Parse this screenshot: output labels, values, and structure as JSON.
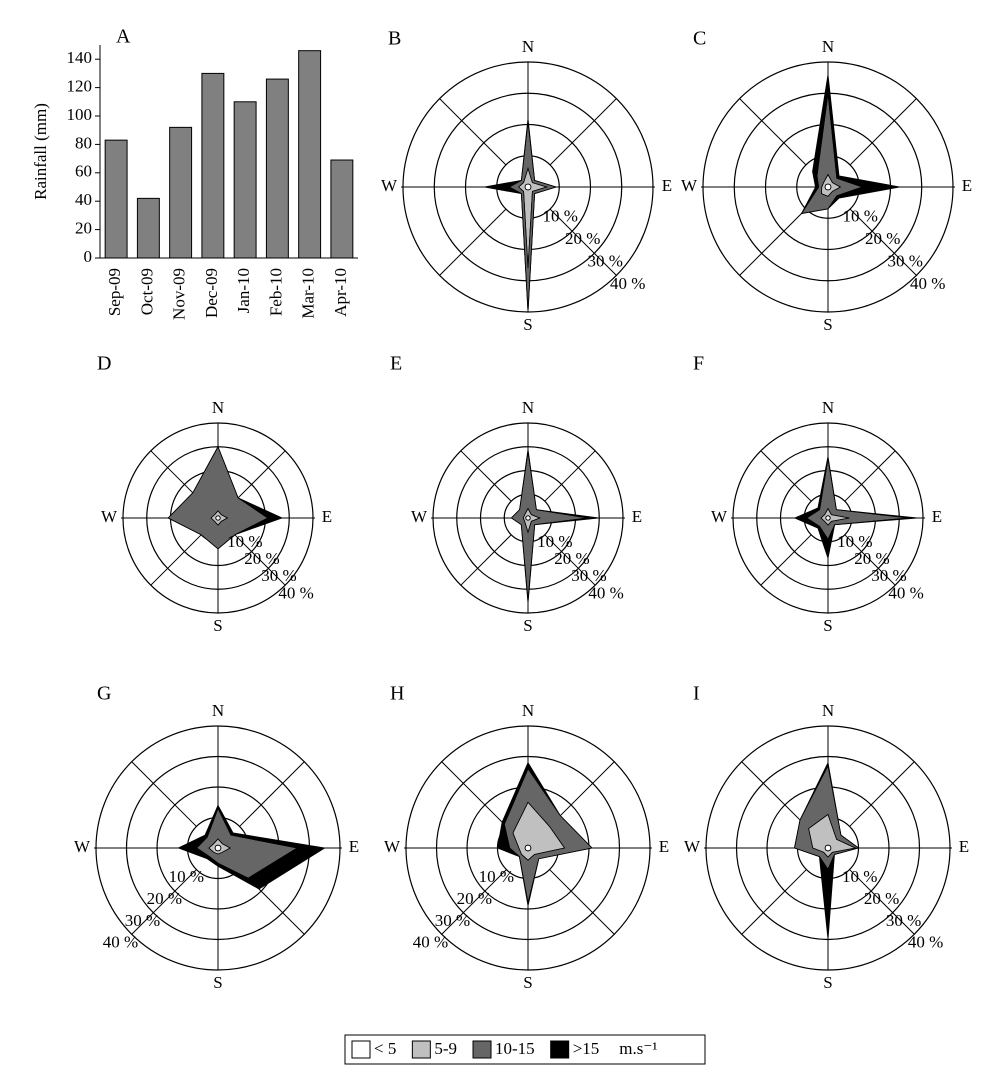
{
  "chart_data": [
    {
      "type": "bar",
      "panel": "A",
      "ylabel": "Rainfall (mm)",
      "categories": [
        "Sep-09",
        "Oct-09",
        "Nov-09",
        "Dec-09",
        "Jan-10",
        "Feb-10",
        "Mar-10",
        "Apr-10"
      ],
      "values": [
        83,
        42,
        92,
        130,
        110,
        126,
        146,
        69
      ],
      "color": "#808080",
      "ylim": [
        0,
        150
      ],
      "yticks": [
        0,
        20,
        40,
        60,
        80,
        100,
        120,
        140
      ]
    },
    {
      "type": "windrose",
      "panel": "B",
      "categories": [
        "N",
        null,
        "E",
        null,
        "S",
        null,
        "W",
        null
      ],
      "rlim": [
        0,
        40
      ],
      "rticks": [
        {
          "value": 10,
          "label": "10 %"
        },
        {
          "value": 20,
          "label": "20 %"
        },
        {
          "value": 30,
          "label": "30 %"
        },
        {
          "value": 40,
          "label": "40 %"
        }
      ],
      "series": [
        {
          "values": [
            1,
            1,
            1,
            1,
            1,
            1,
            1,
            1
          ]
        },
        {
          "values": [
            5,
            1,
            5,
            1,
            25,
            1,
            2,
            1
          ]
        },
        {
          "values": [
            15,
            1,
            3,
            1,
            14,
            1,
            3,
            1
          ]
        },
        {
          "values": [
            1,
            0,
            0,
            0,
            0,
            0,
            8,
            0
          ]
        }
      ]
    },
    {
      "type": "windrose",
      "panel": "C",
      "categories": [
        "N",
        null,
        "E",
        null,
        "S",
        null,
        "W",
        null
      ],
      "rlim": [
        0,
        40
      ],
      "rticks": [
        {
          "value": 10,
          "label": "10 %"
        },
        {
          "value": 20,
          "label": "20 %"
        },
        {
          "value": 30,
          "label": "30 %"
        },
        {
          "value": 40,
          "label": "40 %"
        }
      ],
      "series": [
        {
          "values": [
            1,
            1,
            1,
            1,
            1,
            1,
            1,
            1
          ]
        },
        {
          "values": [
            3,
            1,
            3,
            1,
            2,
            2,
            1,
            1
          ]
        },
        {
          "values": [
            26,
            2,
            7,
            2,
            4,
            9,
            1,
            3
          ]
        },
        {
          "values": [
            6,
            1,
            12,
            1,
            0,
            0,
            1,
            2
          ]
        }
      ]
    },
    {
      "type": "windrose",
      "panel": "D",
      "categories": [
        "N",
        null,
        "E",
        null,
        "S",
        null,
        "W",
        null
      ],
      "rlim": [
        0,
        40
      ],
      "rticks": [
        {
          "value": 10,
          "label": "10 %"
        },
        {
          "value": 20,
          "label": "20 %"
        },
        {
          "value": 30,
          "label": "30 %"
        },
        {
          "value": 40,
          "label": "40 %"
        }
      ],
      "series": [
        {
          "values": [
            1,
            1,
            1,
            1,
            1,
            1,
            1,
            1
          ]
        },
        {
          "values": [
            2,
            1,
            3,
            1,
            2,
            1,
            2,
            1
          ]
        },
        {
          "values": [
            27,
            10,
            17,
            8,
            10,
            8,
            18,
            13
          ]
        },
        {
          "values": [
            0,
            0,
            6,
            0,
            0,
            0,
            0,
            0
          ]
        }
      ]
    },
    {
      "type": "windrose",
      "panel": "E",
      "categories": [
        "N",
        null,
        "E",
        null,
        "S",
        null,
        "W",
        null
      ],
      "rlim": [
        0,
        40
      ],
      "rticks": [
        {
          "value": 10,
          "label": "10 %"
        },
        {
          "value": 20,
          "label": "20 %"
        },
        {
          "value": 30,
          "label": "30 %"
        },
        {
          "value": 40,
          "label": "40 %"
        }
      ],
      "series": [
        {
          "values": [
            1,
            1,
            1,
            1,
            1,
            1,
            1,
            1
          ]
        },
        {
          "values": [
            3,
            1,
            4,
            1,
            5,
            1,
            1,
            1
          ]
        },
        {
          "values": [
            24,
            3,
            20,
            2,
            29,
            2,
            5,
            3
          ]
        },
        {
          "values": [
            1,
            0,
            5,
            0,
            1,
            0,
            0,
            0
          ]
        }
      ]
    },
    {
      "type": "windrose",
      "panel": "F",
      "categories": [
        "N",
        null,
        "E",
        null,
        "S",
        null,
        "W",
        null
      ],
      "rlim": [
        0,
        40
      ],
      "rticks": [
        {
          "value": 10,
          "label": "10 %"
        },
        {
          "value": 20,
          "label": "20 %"
        },
        {
          "value": 30,
          "label": "30 %"
        },
        {
          "value": 40,
          "label": "40 %"
        }
      ],
      "series": [
        {
          "values": [
            1,
            1,
            1,
            1,
            1,
            1,
            1,
            1
          ]
        },
        {
          "values": [
            3,
            1,
            8,
            1,
            2,
            1,
            2,
            1
          ]
        },
        {
          "values": [
            21,
            3,
            25,
            2,
            6,
            3,
            6,
            3
          ]
        },
        {
          "values": [
            1,
            0,
            4,
            0,
            8,
            1,
            5,
            1
          ]
        }
      ]
    },
    {
      "type": "windrose",
      "panel": "G",
      "categories": [
        "N",
        null,
        "E",
        null,
        "S",
        null,
        "W",
        null
      ],
      "rlim": [
        0,
        40
      ],
      "rticks": [
        {
          "value": 10,
          "label": "10 %"
        },
        {
          "value": 20,
          "label": "20 %"
        },
        {
          "value": 30,
          "label": "30 %"
        },
        {
          "value": 40,
          "label": "40 %"
        }
      ],
      "series": [
        {
          "values": [
            1,
            1,
            1,
            1,
            1,
            1,
            1,
            1
          ]
        },
        {
          "values": [
            2,
            1,
            3,
            1,
            1,
            1,
            2,
            1
          ]
        },
        {
          "values": [
            10,
            4,
            22,
            12,
            3,
            2,
            4,
            3
          ]
        },
        {
          "values": [
            1,
            1,
            9,
            5,
            1,
            1,
            6,
            1
          ]
        }
      ]
    },
    {
      "type": "windrose",
      "panel": "H",
      "categories": [
        "N",
        null,
        "E",
        null,
        "S",
        null,
        "W",
        null
      ],
      "rlim": [
        0,
        40
      ],
      "rticks": [
        {
          "value": 10,
          "label": "10 %"
        },
        {
          "value": 20,
          "label": "20 %"
        },
        {
          "value": 30,
          "label": "30 %"
        },
        {
          "value": 40,
          "label": "40 %"
        }
      ],
      "series": [
        {
          "values": [
            1,
            1,
            1,
            1,
            1,
            1,
            1,
            1
          ]
        },
        {
          "values": [
            14,
            9,
            11,
            2,
            3,
            2,
            2,
            6
          ]
        },
        {
          "values": [
            11,
            5,
            9,
            2,
            14,
            1,
            3,
            4
          ]
        },
        {
          "values": [
            2,
            0,
            0,
            0,
            1,
            0,
            4,
            1
          ]
        }
      ]
    },
    {
      "type": "windrose",
      "panel": "I",
      "categories": [
        "N",
        null,
        "E",
        null,
        "S",
        null,
        "W",
        null
      ],
      "rlim": [
        0,
        40
      ],
      "rticks": [
        {
          "value": 10,
          "label": "10 %"
        },
        {
          "value": 20,
          "label": "20 %"
        },
        {
          "value": 30,
          "label": "30 %"
        },
        {
          "value": 40,
          "label": "40 %"
        }
      ],
      "series": [
        {
          "values": [
            1,
            1,
            1,
            1,
            1,
            1,
            1,
            1
          ]
        },
        {
          "values": [
            10,
            3,
            8,
            1,
            2,
            1,
            4,
            8
          ]
        },
        {
          "values": [
            16,
            2,
            1,
            1,
            4,
            2,
            6,
            4
          ]
        },
        {
          "values": [
            1,
            0,
            0,
            0,
            23,
            0,
            0,
            0
          ]
        }
      ]
    }
  ],
  "legend": {
    "series": [
      {
        "name": "< 5",
        "color": "#ffffff"
      },
      {
        "name": "5-9",
        "color": "#c0c0c0"
      },
      {
        "name": "10-15",
        "color": "#666666"
      },
      {
        "name": ">15",
        "color": "#000000"
      }
    ],
    "unit": "m.s⁻¹"
  }
}
